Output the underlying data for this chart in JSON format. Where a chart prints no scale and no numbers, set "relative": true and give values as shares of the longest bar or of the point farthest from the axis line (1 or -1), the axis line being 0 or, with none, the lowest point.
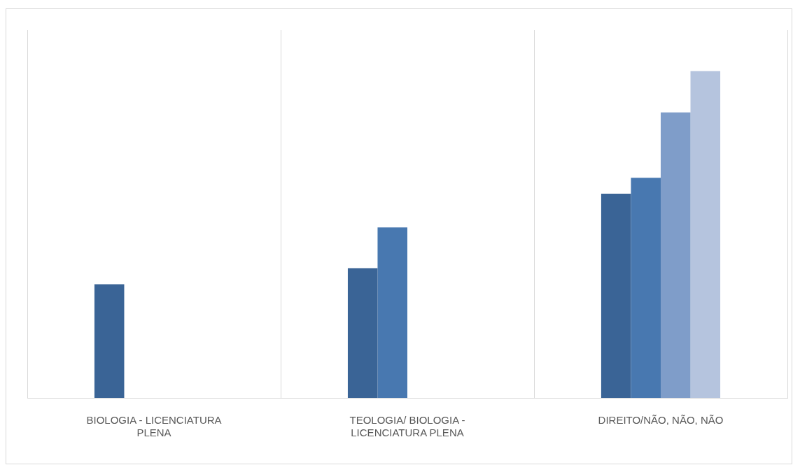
{
  "chart_data": {
    "type": "bar",
    "relative": true,
    "grid": "x",
    "categories": [
      "BIOLOGIA - LICENCIATURA PLENA",
      "TEOLOGIA/ BIOLOGIA - LICENCIATURA PLENA",
      "DIREITO/NÃO, NÃO, NÃO"
    ],
    "series": [
      {
        "color": "#3a6496",
        "values": [
          0.348,
          0.397,
          0.625
        ]
      },
      {
        "color": "#4878b0",
        "values": [
          null,
          0.522,
          0.674
        ]
      },
      {
        "color": "#7f9dc9",
        "values": [
          null,
          null,
          0.874
        ]
      },
      {
        "color": "#b5c4de",
        "values": [
          null,
          null,
          1
        ]
      }
    ]
  }
}
